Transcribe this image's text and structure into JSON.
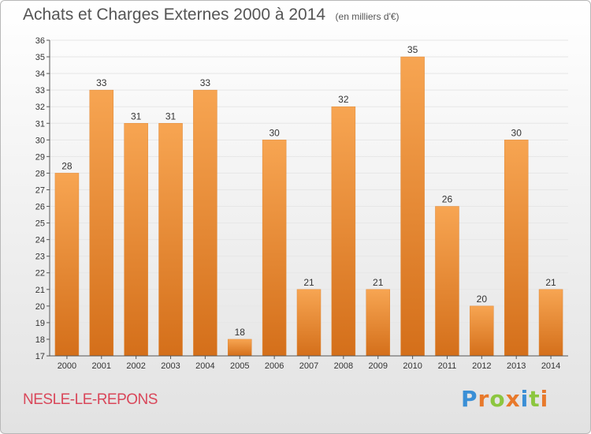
{
  "header": {
    "title": "Achats et Charges Externes 2000 à 2014",
    "unit": "(en milliers d'€)"
  },
  "footer": {
    "place": "NESLE-LE-REPONS",
    "brand_letters": [
      {
        "char": "P",
        "color": "#3a8fd6"
      },
      {
        "char": "r",
        "color": "#e8792b"
      },
      {
        "char": "o",
        "color": "#8cc63f"
      },
      {
        "char": "x",
        "color": "#e8792b"
      },
      {
        "char": "i",
        "color": "#3a8fd6"
      },
      {
        "char": "t",
        "color": "#8cc63f"
      },
      {
        "char": "i",
        "color": "#e8792b"
      }
    ]
  },
  "chart_data": {
    "type": "bar",
    "title": "Achats et Charges Externes 2000 à 2014",
    "ylabel": "",
    "xlabel": "",
    "categories": [
      "2000",
      "2001",
      "2002",
      "2003",
      "2004",
      "2005",
      "2006",
      "2007",
      "2008",
      "2009",
      "2010",
      "2011",
      "2012",
      "2013",
      "2014"
    ],
    "values": [
      28,
      33,
      31,
      31,
      33,
      18,
      30,
      21,
      32,
      21,
      35,
      26,
      20,
      30,
      21
    ],
    "ylim": [
      17,
      36
    ],
    "yticks": [
      17,
      18,
      19,
      20,
      21,
      22,
      23,
      24,
      25,
      26,
      27,
      28,
      29,
      30,
      31,
      32,
      33,
      34,
      35,
      36
    ],
    "grid": true,
    "legend": "none",
    "colors": {
      "bar_top": "#f7a552",
      "bar_bottom": "#d46f1a",
      "bar_edge": "#e08a3a",
      "grid": "#e6e6e6",
      "axis": "#555555"
    }
  }
}
